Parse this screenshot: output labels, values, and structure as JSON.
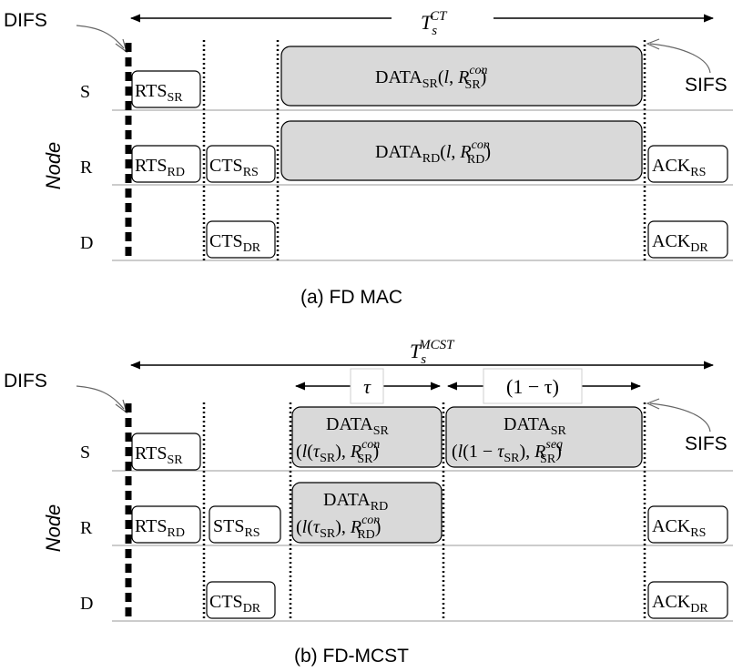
{
  "common": {
    "node_axis_label": "Node",
    "difs_label": "DIFS",
    "sifs_label": "SIFS",
    "rows": [
      "S",
      "R",
      "D"
    ]
  },
  "panel_a": {
    "caption": "(a) FD MAC",
    "period": {
      "symbol": "T",
      "sub": "s",
      "sup": "CT"
    },
    "rts_sr": {
      "main": "RTS",
      "sub": "SR"
    },
    "rts_rd": {
      "main": "RTS",
      "sub": "RD"
    },
    "cts_rs": {
      "main": "CTS",
      "sub": "RS"
    },
    "cts_dr": {
      "main": "CTS",
      "sub": "DR"
    },
    "data_sr": {
      "main": "DATA",
      "sub": "SR",
      "open": "(",
      "l": "l",
      "comma": ", ",
      "r": "R",
      "r_sub": "SR",
      "r_sup": "con",
      "close": ")"
    },
    "data_rd": {
      "main": "DATA",
      "sub": "RD",
      "open": "(",
      "l": "l",
      "comma": ", ",
      "r": "R",
      "r_sub": "RD",
      "r_sup": "con",
      "close": ")"
    },
    "ack_rs": {
      "main": "ACK",
      "sub": "RS"
    },
    "ack_dr": {
      "main": "ACK",
      "sub": "DR"
    }
  },
  "panel_b": {
    "caption": "(b) FD-MCST",
    "period": {
      "symbol": "T",
      "sub": "s",
      "sup": "MCST"
    },
    "tau_label": "τ",
    "one_minus_tau_label": "(1 − τ)",
    "rts_sr": {
      "main": "RTS",
      "sub": "SR"
    },
    "rts_rd": {
      "main": "RTS",
      "sub": "RD"
    },
    "sts_rs": {
      "main": "STS",
      "sub": "RS"
    },
    "cts_dr": {
      "main": "CTS",
      "sub": "DR"
    },
    "data_sr1": {
      "main": "DATA",
      "sub": "SR",
      "l": "l",
      "open": "(",
      "tau": "τ",
      "tau_sub": "SR",
      "mid": "), ",
      "r": "R",
      "r_sub": "SR",
      "r_sup": "con",
      "close": ")"
    },
    "data_sr2": {
      "main": "DATA",
      "sub": "SR",
      "l": "l",
      "open": "(1 − ",
      "tau": "τ",
      "tau_sub": "SR",
      "mid": "), ",
      "r": "R",
      "r_sub": "SR",
      "r_sup": "seq",
      "close": ")"
    },
    "data_rd": {
      "main": "DATA",
      "sub": "RD",
      "l": "l",
      "open": "(",
      "tau": "τ",
      "tau_sub": "SR",
      "mid": "), ",
      "r": "R",
      "r_sub": "RD",
      "r_sup": "con",
      "close": ")"
    },
    "ack_rs": {
      "main": "ACK",
      "sub": "RS"
    },
    "ack_dr": {
      "main": "ACK",
      "sub": "DR"
    }
  }
}
